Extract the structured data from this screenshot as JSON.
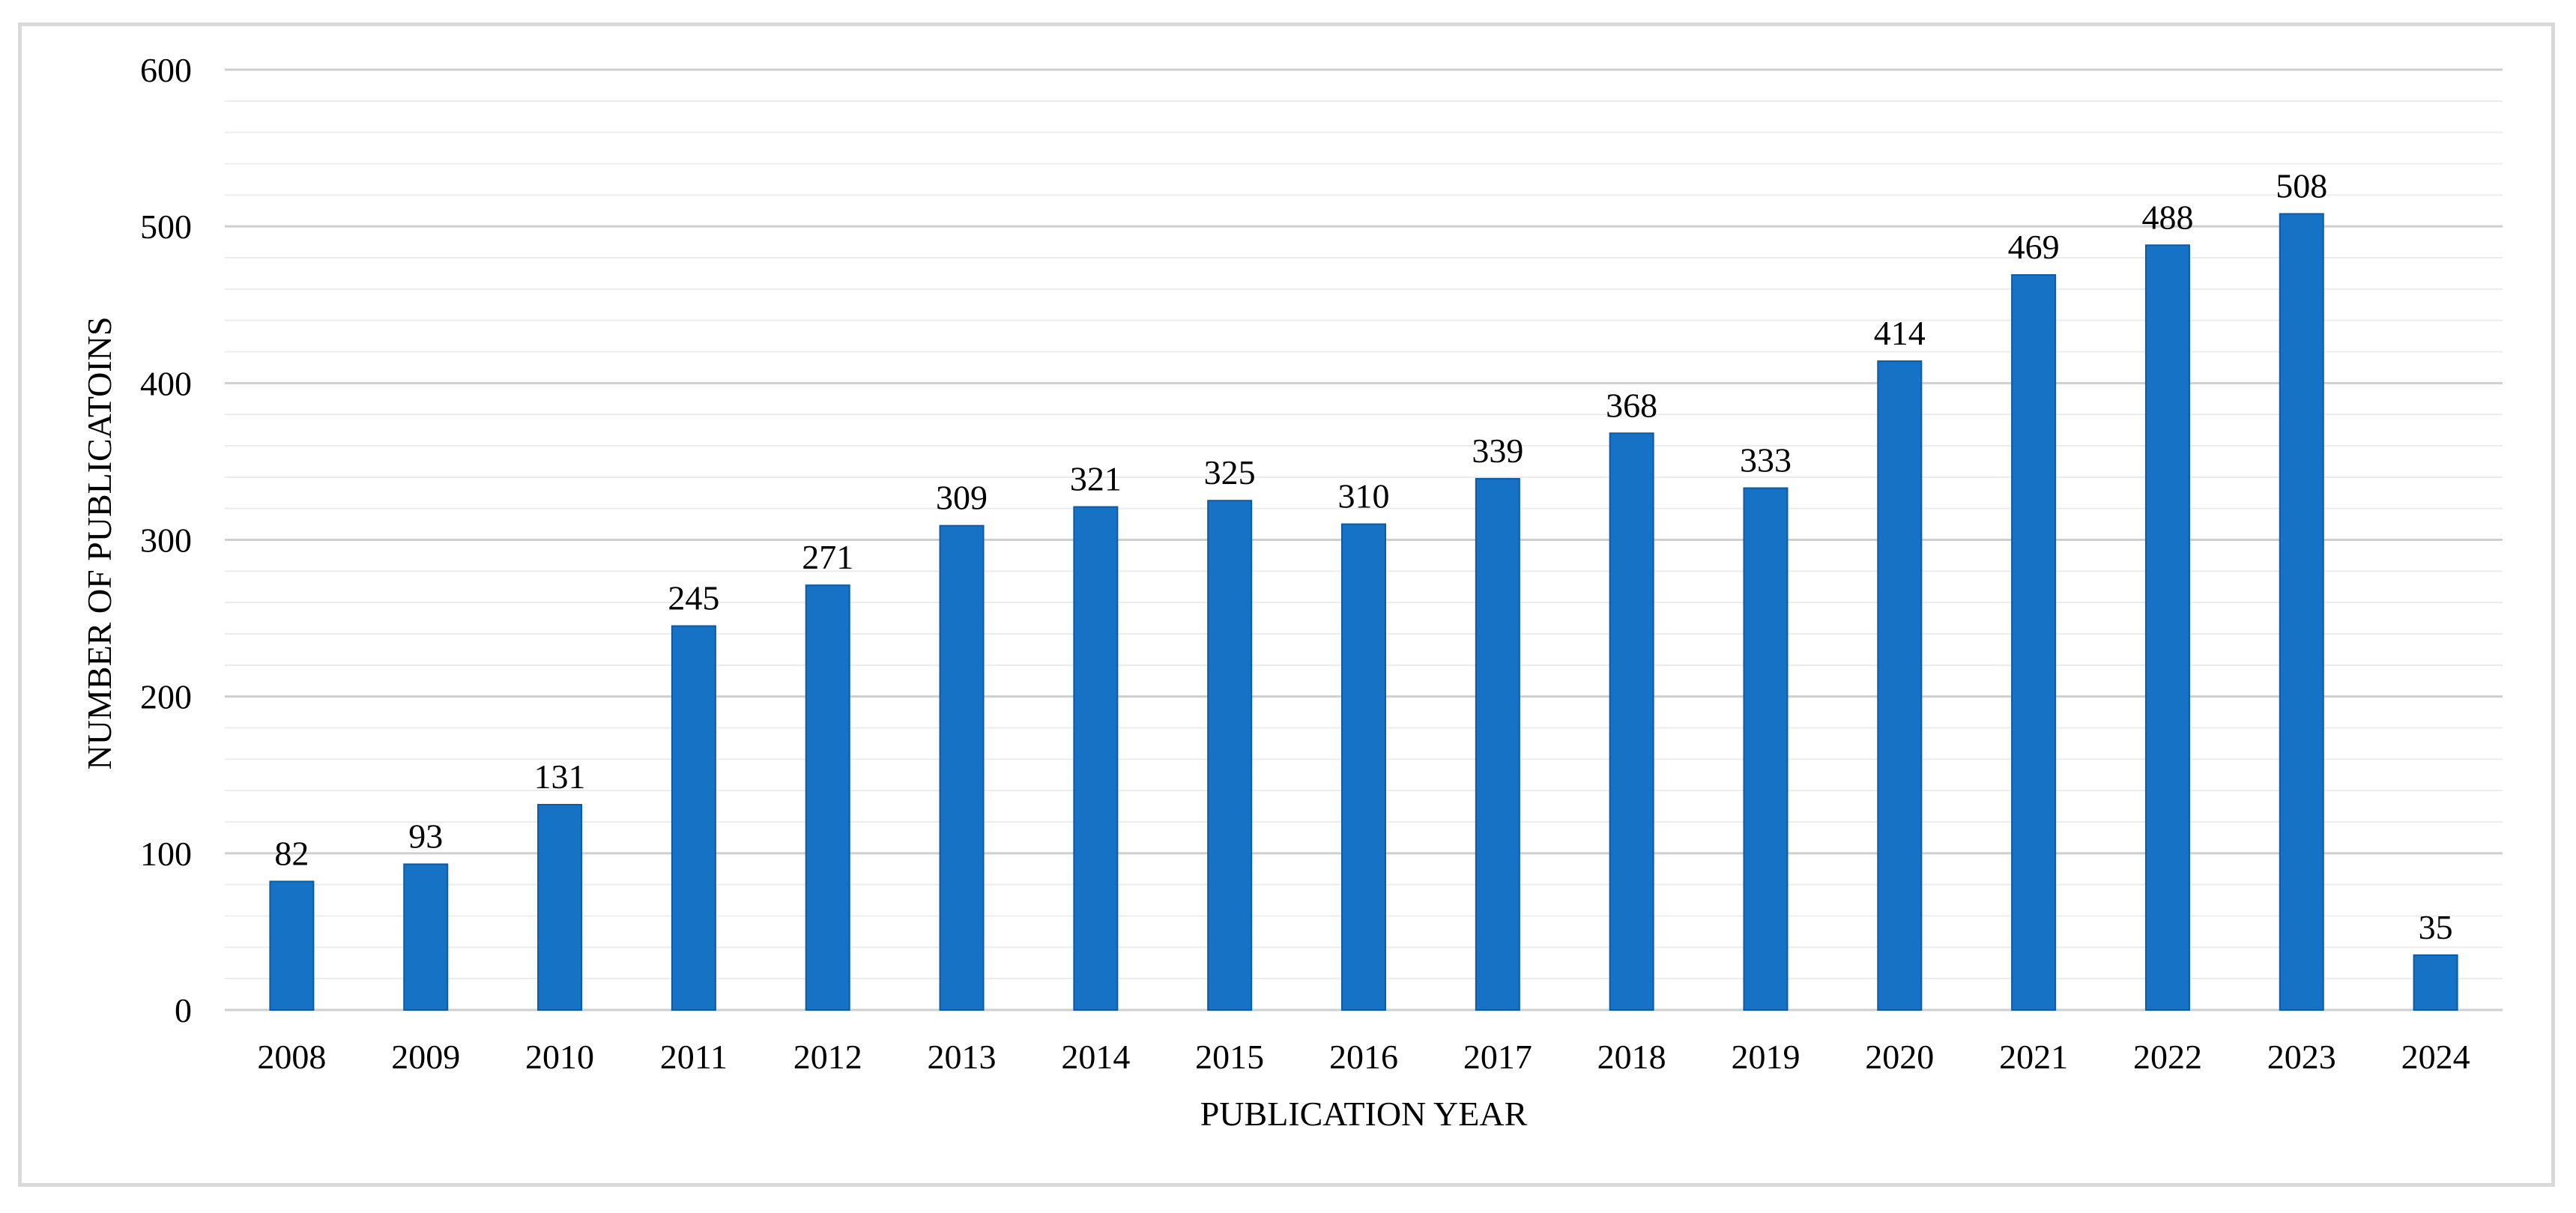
{
  "chart_data": {
    "type": "bar",
    "title": "",
    "xlabel": "PUBLICATION YEAR",
    "ylabel": "NUMBER OF PUBLICATOINS",
    "categories": [
      "2008",
      "2009",
      "2010",
      "2011",
      "2012",
      "2013",
      "2014",
      "2015",
      "2016",
      "2017",
      "2018",
      "2019",
      "2020",
      "2021",
      "2022",
      "2023",
      "2024"
    ],
    "values": [
      82,
      93,
      131,
      245,
      271,
      309,
      321,
      325,
      310,
      339,
      368,
      333,
      414,
      469,
      488,
      508,
      35
    ],
    "data_labels": [
      "82",
      "93",
      "131",
      "245",
      "271",
      "309",
      "321",
      "325",
      "310",
      "339",
      "368",
      "333",
      "414",
      "469",
      "488",
      "508",
      "35"
    ],
    "ylim": [
      0,
      600
    ],
    "y_ticks": [
      0,
      100,
      200,
      300,
      400,
      500,
      600
    ],
    "y_tick_labels": [
      "0",
      "100",
      "200",
      "300",
      "400",
      "500",
      "600"
    ],
    "grid": true,
    "legend": "none",
    "colors": {
      "bar": "#1672c4",
      "bar_edge": "#0e5aa3",
      "major_grid": "#cfcfcf",
      "minor_grid": "#ececec",
      "frame_border": "#d9d9d9"
    }
  }
}
